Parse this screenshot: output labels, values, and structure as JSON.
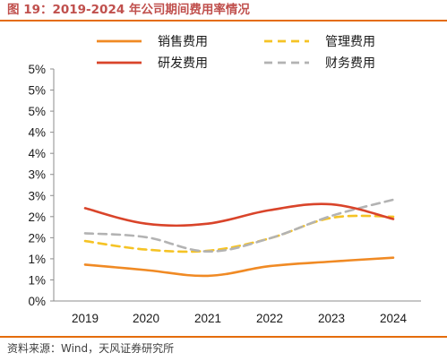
{
  "figure": {
    "title": "图 19：2019-2024 年公司期间费用率情况",
    "source": "资料来源：Wind，天风证券研究所"
  },
  "chart_data": {
    "type": "line",
    "title": "图 19：2019-2024 年公司期间费用率情况",
    "xlabel": "",
    "ylabel": "",
    "x": [
      "2019",
      "2020",
      "2021",
      "2022",
      "2023",
      "2024"
    ],
    "ylim": [
      0,
      6
    ],
    "yticks": [
      "0%",
      "1%",
      "1%",
      "2%",
      "2%",
      "3%",
      "3%",
      "4%",
      "4%",
      "5%",
      "5%",
      "5%"
    ],
    "grid": false,
    "legend_position": "top",
    "series": [
      {
        "name": "销售费用",
        "values": [
          0.94,
          0.8,
          0.65,
          0.9,
          1.02,
          1.12
        ],
        "color": "#f08a24",
        "dash": "solid"
      },
      {
        "name": "研发费用",
        "values": [
          2.4,
          2.0,
          2.0,
          2.35,
          2.5,
          2.12
        ],
        "color": "#d9442a",
        "dash": "solid"
      },
      {
        "name": "管理费用",
        "values": [
          1.55,
          1.33,
          1.3,
          1.62,
          2.15,
          2.18
        ],
        "color": "#f5c325",
        "dash": "dashed"
      },
      {
        "name": "财务费用",
        "values": [
          1.75,
          1.65,
          1.28,
          1.62,
          2.2,
          2.62
        ],
        "color": "#b3b3b3",
        "dash": "dashed"
      }
    ]
  }
}
